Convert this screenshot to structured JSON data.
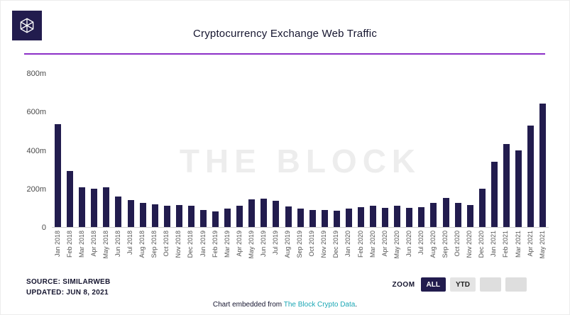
{
  "header": {
    "title": "Cryptocurrency Exchange Web Traffic"
  },
  "icons": {
    "logo": "block-cube-icon"
  },
  "colors": {
    "bar": "#221c4e",
    "accent_line": "#8c2fc7",
    "link": "#1ba7b5",
    "active_button_bg": "#221c4e",
    "watermark": "#ededed"
  },
  "chart_data": {
    "type": "bar",
    "title": "Cryptocurrency Exchange Web Traffic",
    "xlabel": "",
    "ylabel": "",
    "ylim": [
      0,
      800
    ],
    "yticks": [
      800,
      600,
      400,
      200,
      0
    ],
    "ytick_labels": [
      "800m",
      "600m",
      "400m",
      "200m",
      "0"
    ],
    "grid": false,
    "legend": false,
    "watermark": "THE BLOCK",
    "categories": [
      "Jan 2018",
      "Feb 2018",
      "Mar 2018",
      "Apr 2018",
      "May 2018",
      "Jun 2018",
      "Jul 2018",
      "Aug 2018",
      "Sep 2018",
      "Oct 2018",
      "Nov 2018",
      "Dec 2018",
      "Jan 2019",
      "Feb 2019",
      "Mar 2019",
      "Apr 2019",
      "May 2019",
      "Jun 2019",
      "Jul 2019",
      "Aug 2019",
      "Sep 2019",
      "Oct 2019",
      "Nov 2019",
      "Dec 2019",
      "Jan 2020",
      "Feb 2020",
      "Mar 2020",
      "Apr 2020",
      "May 2020",
      "Jun 2020",
      "Jul 2020",
      "Aug 2020",
      "Sep 2020",
      "Oct 2020",
      "Nov 2020",
      "Dec 2020",
      "Jan 2021",
      "Feb 2021",
      "Mar 2021",
      "Apr 2021",
      "May 2021"
    ],
    "values": [
      533,
      292,
      205,
      198,
      205,
      158,
      140,
      125,
      119,
      112,
      115,
      111,
      90,
      83,
      97,
      112,
      145,
      149,
      138,
      108,
      97,
      90,
      89,
      86,
      97,
      104,
      112,
      101,
      111,
      100,
      104,
      127,
      153,
      127,
      115,
      200,
      340,
      430,
      400,
      527,
      640
    ]
  },
  "footer": {
    "source_line1": "SOURCE: SIMILARWEB",
    "source_line2": "UPDATED: JUN 8, 2021",
    "zoom_label": "ZOOM",
    "zoom_buttons": [
      {
        "label": "ALL",
        "active": true
      },
      {
        "label": "YTD",
        "active": false
      },
      {
        "label": "",
        "active": false
      },
      {
        "label": "",
        "active": false
      }
    ],
    "embed_prefix": "Chart embedded from ",
    "embed_link": "The Block Crypto Data",
    "embed_suffix": "."
  }
}
